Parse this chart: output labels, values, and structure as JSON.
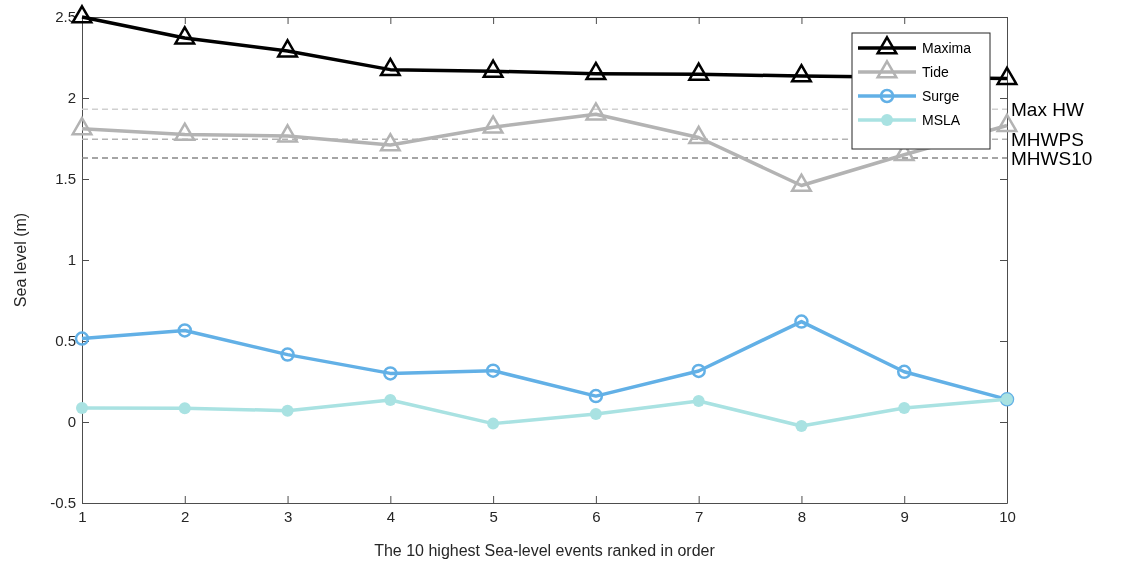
{
  "chart_data": {
    "type": "line",
    "xlabel": "The 10 highest Sea-level events ranked in order",
    "ylabel": "Sea level (m)",
    "x": [
      1,
      2,
      3,
      4,
      5,
      6,
      7,
      8,
      9,
      10
    ],
    "xlim": [
      1,
      10
    ],
    "xticks": [
      1,
      2,
      3,
      4,
      5,
      6,
      7,
      8,
      9,
      10
    ],
    "ylim": [
      -0.5,
      2.5
    ],
    "yticks": [
      -0.5,
      0,
      0.5,
      1,
      1.5,
      2,
      2.5
    ],
    "grid": false,
    "legend": "top right",
    "line_style": "solid",
    "series": [
      {
        "name": "Maxima",
        "color": "#000000",
        "marker": "triangle",
        "values": [
          2.5,
          2.37,
          2.29,
          2.175,
          2.165,
          2.15,
          2.146,
          2.136,
          null,
          2.12
        ]
      },
      {
        "name": "Tide",
        "color": "#b3b3b3",
        "marker": "triangle",
        "values": [
          1.81,
          1.775,
          1.765,
          1.71,
          1.82,
          1.9,
          1.756,
          1.46,
          1.65,
          1.83
        ]
      },
      {
        "name": "Surge",
        "color": "#62b0e6",
        "marker": "circle",
        "values": [
          0.515,
          0.565,
          0.416,
          0.3,
          0.317,
          0.16,
          0.315,
          0.62,
          0.31,
          0.14
        ]
      },
      {
        "name": "MSLA",
        "color": "#a9e2e2",
        "marker": "circle",
        "values": [
          0.086,
          0.085,
          0.07,
          0.136,
          -0.01,
          0.05,
          0.13,
          -0.025,
          0.086,
          0.14
        ]
      }
    ],
    "ref_lines": [
      {
        "axis": "y",
        "value": 1.93,
        "label": "Max HW",
        "color": "#d0d0d0",
        "line_style": "dashed"
      },
      {
        "axis": "y",
        "value": 1.745,
        "label": "MHWPS",
        "color": "#b3b3b3",
        "line_style": "dashed"
      },
      {
        "axis": "y",
        "value": 1.63,
        "label": "MHWS10",
        "color": "#888888",
        "line_style": "dashed"
      }
    ]
  }
}
